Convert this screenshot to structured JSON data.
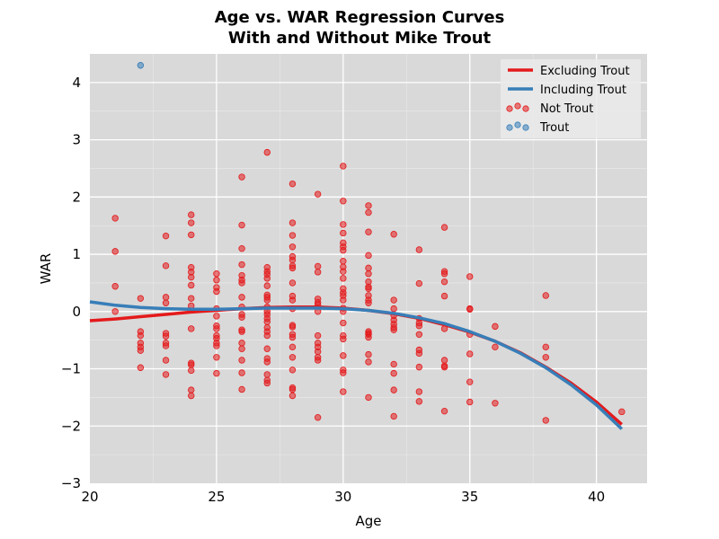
{
  "chart_data": {
    "type": "scatter",
    "title_line1": "Age vs. WAR Regression Curves",
    "title_line2": "With and Without Mike Trout",
    "xlabel": "Age",
    "ylabel": "WAR",
    "xlim": [
      20,
      42
    ],
    "ylim": [
      -3,
      4.5
    ],
    "xticks": [
      20,
      25,
      30,
      35,
      40
    ],
    "yticks": [
      -3,
      -2,
      -1,
      0,
      1,
      2,
      3,
      4
    ],
    "background": "#d9d9d9",
    "grid": true,
    "legend_position": "top-right",
    "legend": [
      "Excluding Trout",
      "Including Trout",
      "Not Trout",
      "Trout"
    ],
    "colors": {
      "excluding": "#e41a1c",
      "including": "#377eb8",
      "not_trout": "#e41a1c",
      "trout": "#377eb8"
    },
    "lines": [
      {
        "name": "Excluding Trout",
        "x": [
          20,
          21,
          22,
          23,
          24,
          25,
          26,
          27,
          28,
          29,
          30,
          31,
          32,
          33,
          34,
          35,
          36,
          37,
          38,
          39,
          40,
          41
        ],
        "y": [
          -0.16,
          -0.13,
          -0.09,
          -0.05,
          -0.01,
          0.02,
          0.05,
          0.07,
          0.08,
          0.08,
          0.06,
          0.02,
          -0.04,
          -0.12,
          -0.23,
          -0.36,
          -0.52,
          -0.72,
          -0.97,
          -1.25,
          -1.58,
          -1.97
        ]
      },
      {
        "name": "Including Trout",
        "x": [
          20,
          21,
          22,
          23,
          24,
          25,
          26,
          27,
          28,
          29,
          30,
          31,
          32,
          33,
          34,
          35,
          36,
          37,
          38,
          39,
          40,
          41
        ],
        "y": [
          0.17,
          0.11,
          0.07,
          0.05,
          0.04,
          0.04,
          0.05,
          0.06,
          0.06,
          0.06,
          0.05,
          0.02,
          -0.03,
          -0.11,
          -0.21,
          -0.35,
          -0.52,
          -0.73,
          -0.98,
          -1.28,
          -1.63,
          -2.05
        ]
      }
    ],
    "series": [
      {
        "name": "Not Trout",
        "points": [
          [
            21,
            1.63
          ],
          [
            21,
            1.05
          ],
          [
            21,
            0.44
          ],
          [
            21,
            0.0
          ],
          [
            22,
            0.23
          ],
          [
            22,
            -0.35
          ],
          [
            22,
            -0.42
          ],
          [
            22,
            -0.55
          ],
          [
            22,
            -0.62
          ],
          [
            22,
            -0.68
          ],
          [
            22,
            -0.98
          ],
          [
            23,
            1.32
          ],
          [
            23,
            0.8
          ],
          [
            23,
            0.25
          ],
          [
            23,
            0.15
          ],
          [
            23,
            -0.38
          ],
          [
            23,
            -0.43
          ],
          [
            23,
            -0.55
          ],
          [
            23,
            -0.6
          ],
          [
            23,
            -0.85
          ],
          [
            23,
            -1.1
          ],
          [
            24,
            1.69
          ],
          [
            24,
            1.55
          ],
          [
            24,
            1.34
          ],
          [
            24,
            0.77
          ],
          [
            24,
            0.69
          ],
          [
            24,
            0.6
          ],
          [
            24,
            0.46
          ],
          [
            24,
            0.23
          ],
          [
            24,
            0.1
          ],
          [
            24,
            -0.3
          ],
          [
            24,
            -0.9
          ],
          [
            24,
            -0.93
          ],
          [
            24,
            -1.03
          ],
          [
            24,
            -1.37
          ],
          [
            24,
            -1.47
          ],
          [
            25,
            0.66
          ],
          [
            25,
            0.55
          ],
          [
            25,
            0.42
          ],
          [
            25,
            0.35
          ],
          [
            25,
            0.05
          ],
          [
            25,
            -0.08
          ],
          [
            25,
            -0.25
          ],
          [
            25,
            -0.3
          ],
          [
            25,
            -0.42
          ],
          [
            25,
            -0.47
          ],
          [
            25,
            -0.55
          ],
          [
            25,
            -0.6
          ],
          [
            25,
            -0.8
          ],
          [
            25,
            -1.08
          ],
          [
            26,
            2.35
          ],
          [
            26,
            1.51
          ],
          [
            26,
            1.1
          ],
          [
            26,
            0.82
          ],
          [
            26,
            0.63
          ],
          [
            26,
            0.55
          ],
          [
            26,
            0.5
          ],
          [
            26,
            0.25
          ],
          [
            26,
            0.08
          ],
          [
            26,
            -0.05
          ],
          [
            26,
            -0.1
          ],
          [
            26,
            -0.32
          ],
          [
            26,
            -0.35
          ],
          [
            26,
            -0.55
          ],
          [
            26,
            -0.65
          ],
          [
            26,
            -0.85
          ],
          [
            26,
            -1.07
          ],
          [
            26,
            -1.36
          ],
          [
            27,
            2.78
          ],
          [
            27,
            0.77
          ],
          [
            27,
            0.7
          ],
          [
            27,
            0.65
          ],
          [
            27,
            0.58
          ],
          [
            27,
            0.45
          ],
          [
            27,
            0.29
          ],
          [
            27,
            0.25
          ],
          [
            27,
            0.2
          ],
          [
            27,
            0.08
          ],
          [
            27,
            0.0
          ],
          [
            27,
            -0.05
          ],
          [
            27,
            -0.12
          ],
          [
            27,
            -0.18
          ],
          [
            27,
            -0.28
          ],
          [
            27,
            -0.35
          ],
          [
            27,
            -0.42
          ],
          [
            27,
            -0.65
          ],
          [
            27,
            -0.82
          ],
          [
            27,
            -0.88
          ],
          [
            27,
            -1.1
          ],
          [
            27,
            -1.2
          ],
          [
            27,
            -1.25
          ],
          [
            28,
            2.23
          ],
          [
            28,
            1.55
          ],
          [
            28,
            1.33
          ],
          [
            28,
            1.13
          ],
          [
            28,
            0.96
          ],
          [
            28,
            0.9
          ],
          [
            28,
            0.8
          ],
          [
            28,
            0.76
          ],
          [
            28,
            0.5
          ],
          [
            28,
            0.27
          ],
          [
            28,
            0.2
          ],
          [
            28,
            0.05
          ],
          [
            28,
            -0.24
          ],
          [
            28,
            -0.27
          ],
          [
            28,
            -0.4
          ],
          [
            28,
            -0.45
          ],
          [
            28,
            -0.62
          ],
          [
            28,
            -0.8
          ],
          [
            28,
            -1.02
          ],
          [
            28,
            -1.33
          ],
          [
            28,
            -1.36
          ],
          [
            28,
            -1.47
          ],
          [
            29,
            2.05
          ],
          [
            29,
            0.79
          ],
          [
            29,
            0.69
          ],
          [
            29,
            0.22
          ],
          [
            29,
            0.16
          ],
          [
            29,
            0.12
          ],
          [
            29,
            0.0
          ],
          [
            29,
            -0.42
          ],
          [
            29,
            -0.55
          ],
          [
            29,
            -0.62
          ],
          [
            29,
            -0.7
          ],
          [
            29,
            -0.8
          ],
          [
            29,
            -0.85
          ],
          [
            29,
            -1.85
          ],
          [
            30,
            2.54
          ],
          [
            30,
            1.93
          ],
          [
            30,
            1.52
          ],
          [
            30,
            1.37
          ],
          [
            30,
            1.2
          ],
          [
            30,
            1.13
          ],
          [
            30,
            1.07
          ],
          [
            30,
            0.88
          ],
          [
            30,
            0.78
          ],
          [
            30,
            0.7
          ],
          [
            30,
            0.58
          ],
          [
            30,
            0.4
          ],
          [
            30,
            0.33
          ],
          [
            30,
            0.28
          ],
          [
            30,
            0.2
          ],
          [
            30,
            0.06
          ],
          [
            30,
            0.0
          ],
          [
            30,
            -0.2
          ],
          [
            30,
            -0.42
          ],
          [
            30,
            -0.48
          ],
          [
            30,
            -0.77
          ],
          [
            30,
            -1.02
          ],
          [
            30,
            -1.07
          ],
          [
            30,
            -1.4
          ],
          [
            31,
            1.85
          ],
          [
            31,
            1.73
          ],
          [
            31,
            1.39
          ],
          [
            31,
            0.98
          ],
          [
            31,
            0.76
          ],
          [
            31,
            0.66
          ],
          [
            31,
            0.52
          ],
          [
            31,
            0.43
          ],
          [
            31,
            0.4
          ],
          [
            31,
            0.28
          ],
          [
            31,
            0.2
          ],
          [
            31,
            0.15
          ],
          [
            31,
            -0.35
          ],
          [
            31,
            -0.38
          ],
          [
            31,
            -0.4
          ],
          [
            31,
            -0.45
          ],
          [
            31,
            -0.75
          ],
          [
            31,
            -0.88
          ],
          [
            31,
            -1.5
          ],
          [
            32,
            1.35
          ],
          [
            32,
            0.2
          ],
          [
            32,
            0.05
          ],
          [
            32,
            -0.07
          ],
          [
            32,
            -0.15
          ],
          [
            32,
            -0.22
          ],
          [
            32,
            -0.28
          ],
          [
            32,
            -0.32
          ],
          [
            32,
            -0.92
          ],
          [
            32,
            -1.08
          ],
          [
            32,
            -1.37
          ],
          [
            32,
            -1.83
          ],
          [
            33,
            1.08
          ],
          [
            33,
            0.49
          ],
          [
            33,
            -0.12
          ],
          [
            33,
            -0.2
          ],
          [
            33,
            -0.25
          ],
          [
            33,
            -0.4
          ],
          [
            33,
            -0.67
          ],
          [
            33,
            -0.73
          ],
          [
            33,
            -0.97
          ],
          [
            33,
            -1.4
          ],
          [
            33,
            -1.57
          ],
          [
            34,
            1.47
          ],
          [
            34,
            0.7
          ],
          [
            34,
            0.66
          ],
          [
            34,
            0.52
          ],
          [
            34,
            0.27
          ],
          [
            34,
            -0.3
          ],
          [
            34,
            -0.85
          ],
          [
            34,
            -0.95
          ],
          [
            34,
            -0.97
          ],
          [
            34,
            -1.74
          ],
          [
            35,
            0.61
          ],
          [
            35,
            0.05
          ],
          [
            35,
            0.04
          ],
          [
            35,
            -0.4
          ],
          [
            35,
            -0.74
          ],
          [
            35,
            -1.23
          ],
          [
            35,
            -1.58
          ],
          [
            36,
            -0.26
          ],
          [
            36,
            -0.62
          ],
          [
            36,
            -1.6
          ],
          [
            38,
            0.28
          ],
          [
            38,
            -0.62
          ],
          [
            38,
            -0.8
          ],
          [
            38,
            -1.9
          ],
          [
            41,
            -1.75
          ]
        ]
      },
      {
        "name": "Trout",
        "points": [
          [
            22,
            4.3
          ]
        ]
      }
    ]
  }
}
